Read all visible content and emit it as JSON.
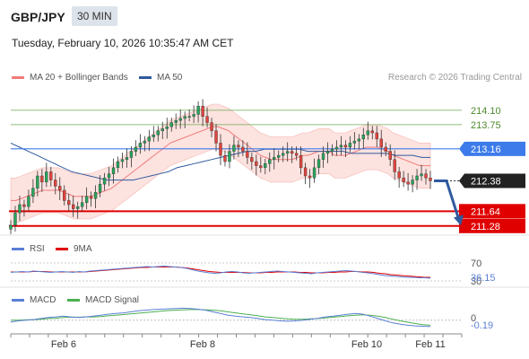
{
  "header": {
    "symbol": "GBP/JPY",
    "interval": "30 MIN",
    "datetime": "Tuesday, February 10, 2026 10:35:47 AM CET"
  },
  "legend": {
    "ma20": "MA 20 + Bollinger Bands",
    "ma20_color": "#f07c7c",
    "ma50": "MA 50",
    "ma50_color": "#2f5a9e",
    "credit": "Research © 2026 Trading Central"
  },
  "chart_data": [
    {
      "type": "line",
      "panel": "price",
      "symbol": "GBP/JPY",
      "ylim": [
        211.1,
        214.6
      ],
      "x_ticks": [
        "Feb 6",
        "Feb 8",
        "Feb 10",
        "Feb 11"
      ],
      "close": [
        211.3,
        211.6,
        211.8,
        211.75,
        212.0,
        212.2,
        212.5,
        212.35,
        212.6,
        212.4,
        212.25,
        212.15,
        211.9,
        211.8,
        211.7,
        211.75,
        211.85,
        212.0,
        211.95,
        212.1,
        212.3,
        212.45,
        212.55,
        212.7,
        212.85,
        212.9,
        212.95,
        213.1,
        213.2,
        213.3,
        213.35,
        213.45,
        213.5,
        213.6,
        213.65,
        213.7,
        213.8,
        213.85,
        213.9,
        213.95,
        213.95,
        214.0,
        214.2,
        213.95,
        213.8,
        213.6,
        213.3,
        213.0,
        212.85,
        213.1,
        213.25,
        213.2,
        213.1,
        212.95,
        212.85,
        212.75,
        212.7,
        212.8,
        212.9,
        212.95,
        213.0,
        213.05,
        213.1,
        213.05,
        213.0,
        212.7,
        212.5,
        212.45,
        212.7,
        212.9,
        213.05,
        213.1,
        213.15,
        213.2,
        213.25,
        213.2,
        213.3,
        213.35,
        213.4,
        213.5,
        213.6,
        213.55,
        213.4,
        213.2,
        213.1,
        212.9,
        212.6,
        212.45,
        212.35,
        212.3,
        212.4,
        212.5,
        212.55,
        212.45,
        212.38
      ],
      "ma20": [
        211.9,
        211.9,
        211.95,
        212.0,
        212.05,
        212.1,
        212.15,
        212.15,
        212.15,
        212.15,
        212.1,
        212.05,
        212.0,
        212.0,
        212.0,
        212.0,
        212.05,
        212.1,
        212.15,
        212.2,
        212.3,
        212.4,
        212.5,
        212.6,
        212.7,
        212.8,
        212.9,
        213.0,
        213.1,
        213.2,
        213.3,
        213.35,
        213.4,
        213.45,
        213.5,
        213.55,
        213.6,
        213.65,
        213.7,
        213.7,
        213.65,
        213.6,
        213.5,
        213.4,
        213.3,
        213.2,
        213.1,
        213.0,
        212.95,
        212.9,
        212.9,
        212.9,
        212.9,
        212.9,
        212.95,
        213.0,
        213.0,
        213.05,
        213.1,
        213.1,
        213.1,
        213.0,
        213.0,
        213.0,
        213.05,
        213.1,
        213.15,
        213.2,
        213.2,
        213.2,
        213.15,
        213.1,
        213.0,
        212.95,
        212.9,
        212.85,
        212.8,
        212.75,
        212.75,
        212.75
      ],
      "ma50": [
        213.3,
        213.2,
        213.1,
        213.0,
        212.9,
        212.8,
        212.7,
        212.6,
        212.55,
        212.5,
        212.45,
        212.4,
        212.4,
        212.4,
        212.4,
        212.45,
        212.5,
        212.55,
        212.6,
        212.7,
        212.75,
        212.8,
        212.85,
        212.9,
        212.95,
        213.0,
        213.05,
        213.1,
        213.1,
        213.15,
        213.15,
        213.15,
        213.15,
        213.15,
        213.1,
        213.1,
        213.1,
        213.1,
        213.1,
        213.05,
        213.05,
        213.05,
        213.05,
        213.05,
        213.0,
        213.0,
        213.0,
        212.95,
        212.95
      ],
      "levels": [
        {
          "value": 214.1,
          "label": "214.10",
          "kind": "resistance",
          "color": "#6aa84f"
        },
        {
          "value": 213.75,
          "label": "213.75",
          "kind": "resistance",
          "color": "#6aa84f"
        },
        {
          "value": 213.16,
          "label": "213.16",
          "kind": "pivot",
          "color": "#3d7bea"
        },
        {
          "value": 212.38,
          "label": "212.38",
          "kind": "last",
          "color": "#222222"
        },
        {
          "value": 211.64,
          "label": "211.64",
          "kind": "target",
          "color": "#e00000"
        },
        {
          "value": 211.28,
          "label": "211.28",
          "kind": "target",
          "color": "#e00000"
        }
      ],
      "bias": "down"
    },
    {
      "type": "line",
      "panel": "rsi",
      "series": [
        {
          "name": "RSI",
          "color": "#5b7fd6"
        },
        {
          "name": "9MA",
          "color": "#e00000"
        }
      ],
      "tick_labels": [
        "70",
        "30"
      ],
      "value_label": "36.15",
      "rsi": [
        49,
        50,
        51,
        50,
        52,
        51,
        50,
        49,
        50,
        51,
        50,
        49,
        51,
        50,
        52,
        53,
        54,
        55,
        56,
        57,
        58,
        59,
        60,
        61,
        62,
        61,
        62,
        63,
        62,
        61,
        60,
        58,
        55,
        52,
        50,
        48,
        47,
        48,
        50,
        51,
        50,
        48,
        47,
        48,
        49,
        50,
        51,
        52,
        51,
        50,
        49,
        48,
        47,
        46,
        48,
        49,
        50,
        51,
        52,
        53,
        52,
        51,
        49,
        48,
        46,
        44,
        42,
        41,
        40,
        39,
        38,
        38,
        37,
        37,
        36.15
      ],
      "ma9": [
        50,
        50,
        50,
        50,
        51,
        51,
        51,
        50,
        50,
        50,
        50,
        50,
        50,
        50,
        51,
        52,
        53,
        54,
        55,
        56,
        57,
        58,
        59,
        60,
        60,
        61,
        61,
        61,
        61,
        61,
        60,
        59,
        57,
        55,
        53,
        51,
        50,
        49,
        49,
        49,
        49,
        49,
        48,
        48,
        48,
        49,
        49,
        50,
        50,
        50,
        50,
        49,
        49,
        48,
        48,
        48,
        49,
        49,
        50,
        50,
        51,
        51,
        50,
        50,
        49,
        47,
        46,
        44,
        43,
        42,
        41,
        40,
        39,
        38,
        38
      ]
    },
    {
      "type": "line",
      "panel": "macd",
      "series": [
        {
          "name": "MACD",
          "color": "#5b7fd6"
        },
        {
          "name": "MACD Signal",
          "color": "#4caf50"
        }
      ],
      "tick_labels": [
        "0"
      ],
      "value_label": "-0.19",
      "macd": [
        -0.05,
        -0.02,
        0.0,
        0.02,
        0.05,
        0.08,
        0.1,
        0.12,
        0.1,
        0.08,
        0.1,
        0.12,
        0.15,
        0.18,
        0.2,
        0.22,
        0.25,
        0.28,
        0.3,
        0.32,
        0.33,
        0.34,
        0.35,
        0.36,
        0.35,
        0.33,
        0.3,
        0.25,
        0.2,
        0.15,
        0.12,
        0.1,
        0.08,
        0.05,
        0.02,
        0.0,
        -0.02,
        -0.03,
        -0.02,
        0.0,
        0.03,
        0.06,
        0.1,
        0.12,
        0.15,
        0.18,
        0.2,
        0.18,
        0.12,
        0.05,
        -0.02,
        -0.08,
        -0.12,
        -0.15,
        -0.17,
        -0.18,
        -0.19
      ],
      "signal": [
        0.0,
        0.0,
        0.01,
        0.02,
        0.03,
        0.05,
        0.06,
        0.08,
        0.09,
        0.09,
        0.1,
        0.1,
        0.11,
        0.13,
        0.15,
        0.17,
        0.19,
        0.21,
        0.23,
        0.25,
        0.27,
        0.29,
        0.3,
        0.31,
        0.32,
        0.32,
        0.31,
        0.3,
        0.28,
        0.25,
        0.22,
        0.19,
        0.16,
        0.13,
        0.1,
        0.08,
        0.06,
        0.04,
        0.03,
        0.03,
        0.04,
        0.05,
        0.07,
        0.09,
        0.11,
        0.13,
        0.15,
        0.16,
        0.15,
        0.12,
        0.08,
        0.03,
        -0.02,
        -0.06,
        -0.1,
        -0.13,
        -0.15
      ]
    }
  ]
}
